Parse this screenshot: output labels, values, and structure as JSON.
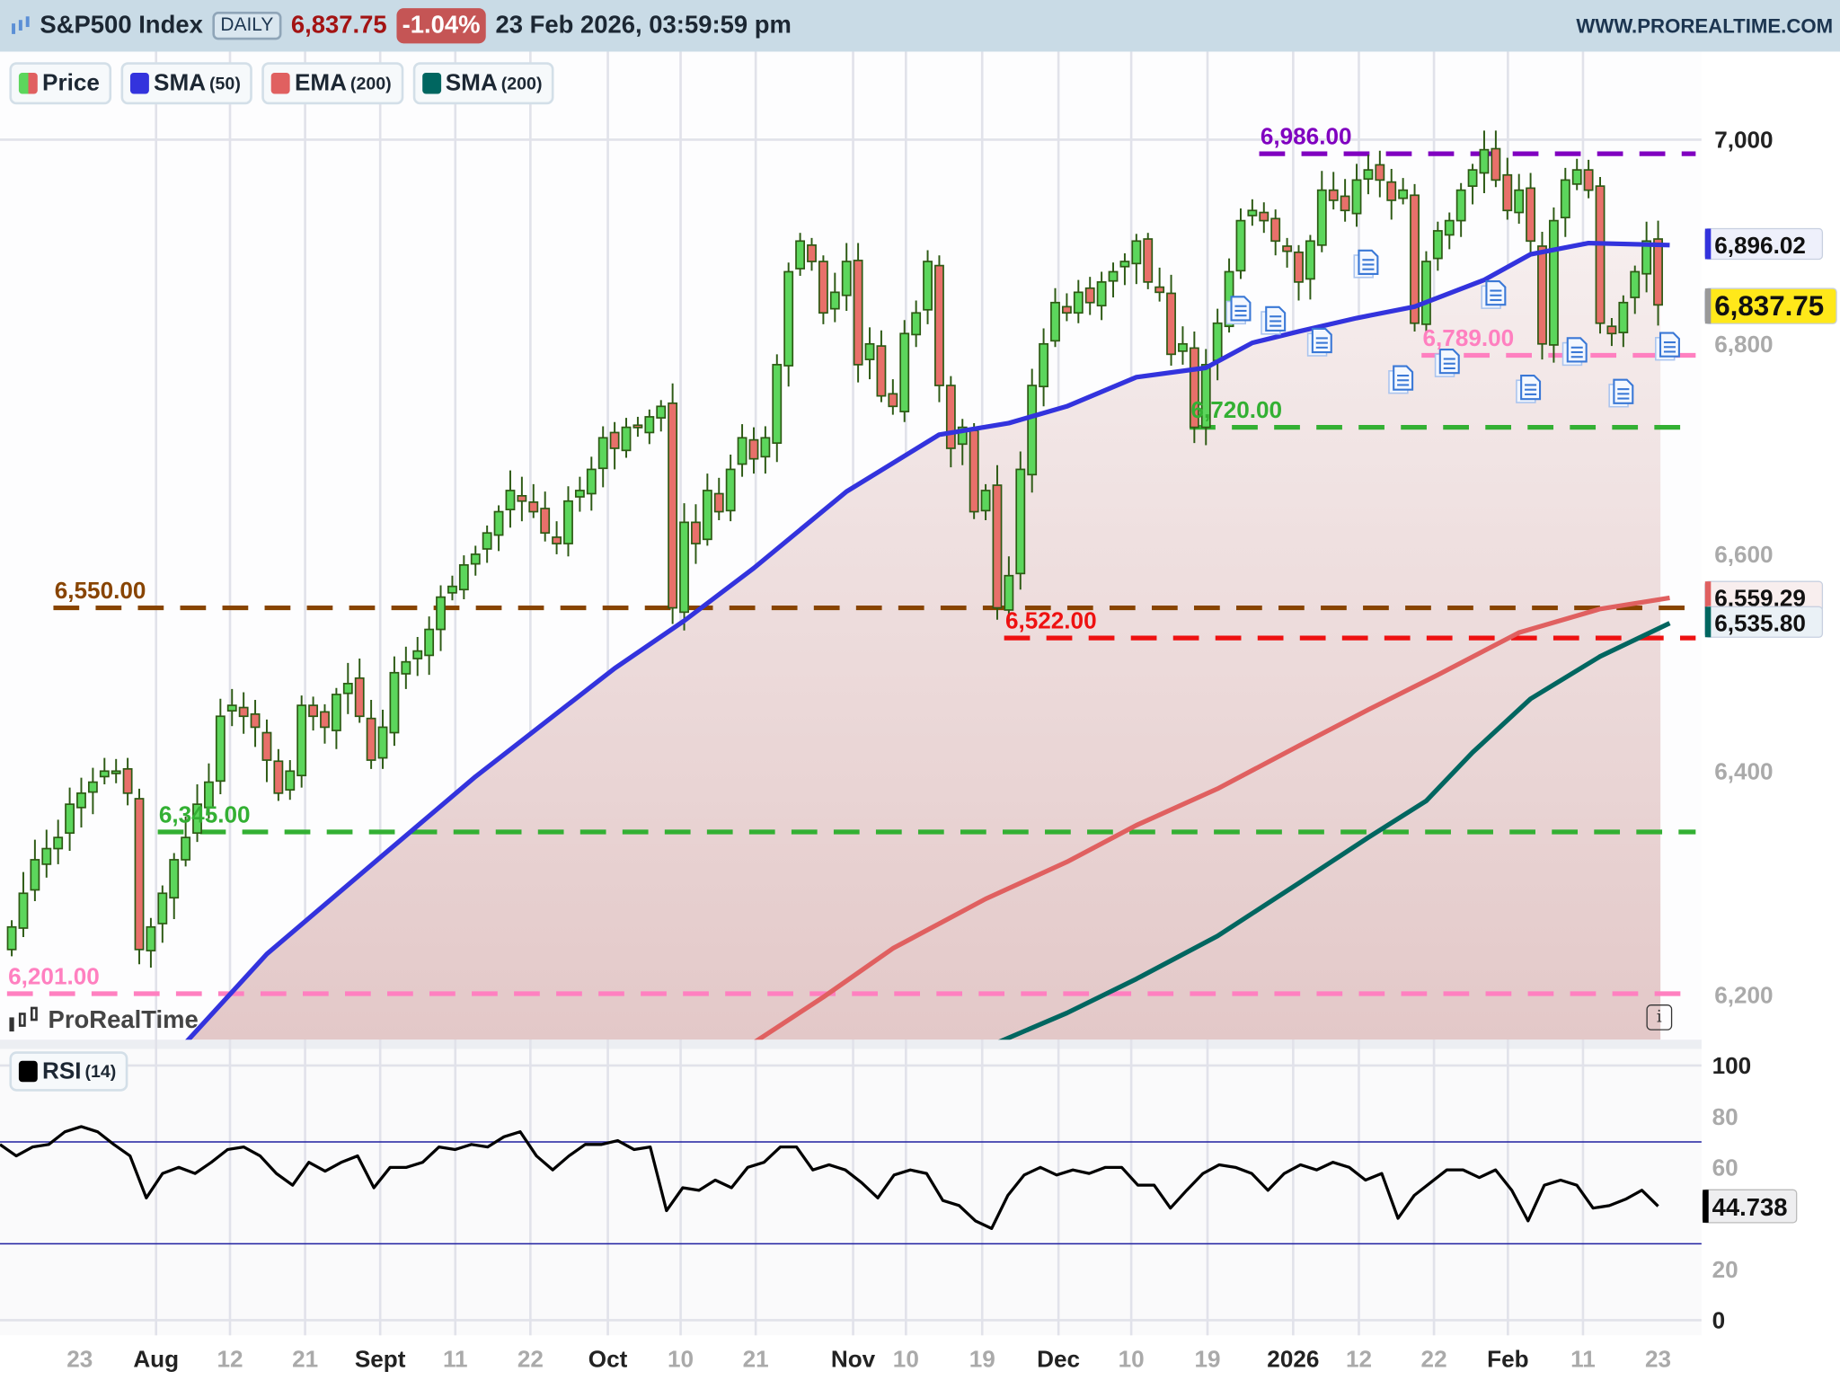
{
  "header": {
    "title": "S&P500 Index",
    "timeframe": "DAILY",
    "last_price": "6,837.75",
    "change_pct": "-1.04%",
    "datetime": "23 Feb 2026, 03:59:59 pm",
    "site": "WWW.PROREALTIME.COM"
  },
  "legend": [
    {
      "label": "Price",
      "param": "",
      "color": "#e06060"
    },
    {
      "label": "SMA",
      "param": "(50)",
      "color": "#3333dd"
    },
    {
      "label": "EMA",
      "param": "(200)",
      "color": "#e06060"
    },
    {
      "label": "SMA",
      "param": "(200)",
      "color": "#006660"
    }
  ],
  "rsi_legend": {
    "label": "RSI",
    "param": "(14)",
    "color": "#000000"
  },
  "watermark": "ProRealTime",
  "event_icon": "document-icon",
  "chart_data": [
    {
      "type": "candlestick",
      "scale": "log",
      "ylim": [
        6161,
        7060
      ],
      "y_ticks": [
        {
          "value": 7000,
          "label": "7,000"
        },
        {
          "value": 6800,
          "label": "6,800"
        },
        {
          "value": 6600,
          "label": "6,600"
        },
        {
          "value": 6400,
          "label": "6,400"
        },
        {
          "value": 6200,
          "label": "6,200"
        }
      ],
      "x_ticks": [
        "23",
        "Aug",
        "12",
        "21",
        "Sept",
        "11",
        "22",
        "Oct",
        "10",
        "21",
        "Nov",
        "10",
        "19",
        "Dec",
        "10",
        "19",
        "2026",
        "12",
        "22",
        "Feb",
        "11",
        "23"
      ],
      "x_tick_bold": [
        false,
        true,
        false,
        false,
        true,
        false,
        false,
        true,
        false,
        false,
        true,
        false,
        false,
        true,
        false,
        false,
        true,
        false,
        false,
        true,
        false,
        false
      ],
      "up_color": "#5cd65c",
      "down_color": "#e8706a",
      "close": [
        6260,
        6290,
        6320,
        6330,
        6340,
        6370,
        6380,
        6390,
        6400,
        6400,
        6380,
        6240,
        6260,
        6290,
        6320,
        6340,
        6370,
        6390,
        6450,
        6460,
        6450,
        6440,
        6410,
        6380,
        6400,
        6460,
        6450,
        6440,
        6470,
        6480,
        6450,
        6410,
        6440,
        6490,
        6500,
        6510,
        6530,
        6560,
        6570,
        6590,
        6600,
        6620,
        6640,
        6660,
        6650,
        6640,
        6620,
        6610,
        6650,
        6660,
        6680,
        6710,
        6700,
        6720,
        6720,
        6730,
        6740,
        6550,
        6630,
        6610,
        6660,
        6640,
        6680,
        6710,
        6690,
        6710,
        6780,
        6870,
        6900,
        6880,
        6830,
        6850,
        6880,
        6780,
        6800,
        6750,
        6740,
        6810,
        6830,
        6880,
        6760,
        6700,
        6720,
        6640,
        6660,
        6550,
        6580,
        6680,
        6760,
        6800,
        6840,
        6830,
        6850,
        6840,
        6860,
        6870,
        6880,
        6900,
        6860,
        6850,
        6790,
        6800,
        6720,
        6780,
        6820,
        6870,
        6920,
        6930,
        6920,
        6900,
        6890,
        6860,
        6900,
        6950,
        6940,
        6930,
        6960,
        6970,
        6960,
        6940,
        6950,
        6820,
        6880,
        6910,
        6920,
        6950,
        6970,
        6990,
        6960,
        6930,
        6950,
        6900,
        6800,
        6920,
        6960,
        6970,
        6950,
        6820,
        6810,
        6840,
        6870,
        6900,
        6837.75
      ],
      "series": [
        {
          "name": "SMA (50)",
          "color": "#3333dd",
          "points": [
            [
              15,
              6158
            ],
            [
              22,
              6236
            ],
            [
              32,
              6324
            ],
            [
              40,
              6395
            ],
            [
              52,
              6494
            ],
            [
              58,
              6538
            ],
            [
              64,
              6587
            ],
            [
              72,
              6659
            ],
            [
              80,
              6713
            ],
            [
              86,
              6724
            ],
            [
              91,
              6740
            ],
            [
              97,
              6768
            ],
            [
              103,
              6777
            ],
            [
              107,
              6801
            ],
            [
              111,
              6812
            ],
            [
              116,
              6825
            ],
            [
              121,
              6836
            ],
            [
              127,
              6862
            ],
            [
              131,
              6887
            ],
            [
              136,
              6898
            ],
            [
              143,
              6896.02
            ]
          ]
        },
        {
          "name": "EMA (200)",
          "color": "#e06060",
          "points": [
            [
              64,
              6158
            ],
            [
              70,
              6198
            ],
            [
              76,
              6241
            ],
            [
              84,
              6285
            ],
            [
              91,
              6318
            ],
            [
              97,
              6351
            ],
            [
              104,
              6384
            ],
            [
              111,
              6423
            ],
            [
              117,
              6456
            ],
            [
              123,
              6488
            ],
            [
              130,
              6527
            ],
            [
              137,
              6549
            ],
            [
              143,
              6559.29
            ]
          ]
        },
        {
          "name": "SMA (200)",
          "color": "#006660",
          "points": [
            [
              85,
              6158
            ],
            [
              91,
              6184
            ],
            [
              97,
              6214
            ],
            [
              104,
              6252
            ],
            [
              111,
              6299
            ],
            [
              117,
              6340
            ],
            [
              122,
              6373
            ],
            [
              126,
              6417
            ],
            [
              131,
              6466
            ],
            [
              137,
              6505
            ],
            [
              143,
              6535.8
            ]
          ]
        }
      ],
      "levels": [
        {
          "value": 6986,
          "label": "6,986.00",
          "color": "#8000c0",
          "start_bar": 108
        },
        {
          "value": 6789,
          "label": "6,789.00",
          "color": "#ff80c0",
          "start_bar": 122
        },
        {
          "value": 6720,
          "label": "6,720.00",
          "color": "#33b033",
          "start_bar": 102
        },
        {
          "value": 6550,
          "label": "6,550.00",
          "color": "#884400",
          "start_bar": 4
        },
        {
          "value": 6522,
          "label": "6,522.00",
          "color": "#ee1111",
          "start_bar": 86
        },
        {
          "value": 6345,
          "label": "6,345.00",
          "color": "#33b033",
          "start_bar": 13
        },
        {
          "value": 6201,
          "label": "6,201.00",
          "color": "#ff80c0",
          "start_bar": 0
        }
      ],
      "events": [
        [
          106,
          6832
        ],
        [
          109,
          6822
        ],
        [
          113,
          6801
        ],
        [
          117,
          6877
        ],
        [
          120,
          6765
        ],
        [
          124,
          6781
        ],
        [
          128,
          6847
        ],
        [
          131,
          6756
        ],
        [
          135,
          6792
        ],
        [
          139,
          6752
        ],
        [
          143,
          6797
        ]
      ],
      "value_tags": [
        {
          "label": "6,896.02",
          "value": 6896.02,
          "color": "#3333dd",
          "bg": "#eef0fb"
        },
        {
          "label": "6,837.75",
          "value": 6837.75,
          "color": "#999999",
          "bg": "#ffe81a"
        },
        {
          "label": "6,559.29",
          "value": 6559.29,
          "color": "#e06060",
          "bg": "#f8eeee"
        },
        {
          "label": "6,535.80",
          "value": 6535.8,
          "color": "#006660",
          "bg": "#eaf1f6"
        }
      ]
    },
    {
      "type": "line",
      "name": "RSI (14)",
      "ylim": [
        0,
        100
      ],
      "y_ticks": [
        {
          "value": 100,
          "label": "100"
        },
        {
          "value": 80,
          "label": "80"
        },
        {
          "value": 60,
          "label": "60"
        },
        {
          "value": 20,
          "label": "20"
        },
        {
          "value": 0,
          "label": "0"
        }
      ],
      "bands": [
        70,
        30
      ],
      "values": [
        69,
        64.5,
        68,
        69,
        74,
        76,
        74,
        69,
        64.5,
        48,
        57.6,
        60,
        57.6,
        62,
        67,
        68,
        64.5,
        57.6,
        53,
        62,
        58.5,
        62,
        64.5,
        52,
        60,
        60,
        62,
        68,
        67,
        69,
        68,
        72,
        74,
        64.5,
        59,
        64.5,
        69,
        69,
        70.5,
        67,
        68,
        43,
        52,
        51,
        55,
        52,
        60,
        62,
        68,
        68,
        59,
        61,
        59,
        54,
        48,
        57,
        59,
        57.6,
        47,
        45,
        39,
        36,
        49,
        57,
        60,
        57,
        59,
        57.6,
        60,
        60,
        53,
        53,
        44,
        51,
        57.6,
        61,
        60,
        57.6,
        51,
        57.6,
        61,
        59,
        62,
        60,
        55,
        57.6,
        40,
        49,
        54,
        59,
        59,
        56,
        59,
        51,
        39,
        53,
        55,
        53,
        44,
        45,
        47.5,
        51,
        44.738
      ],
      "last_label": "44.738"
    }
  ]
}
